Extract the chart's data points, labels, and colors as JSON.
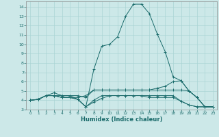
{
  "xlabel": "Humidex (Indice chaleur)",
  "ylabel": "",
  "bg_color": "#cce8e8",
  "grid_color": "#aad4d4",
  "line_color": "#1a6b6b",
  "xlim": [
    -0.5,
    23.5
  ],
  "ylim": [
    3,
    14.6
  ],
  "yticks": [
    3,
    4,
    5,
    6,
    7,
    8,
    9,
    10,
    11,
    12,
    13,
    14
  ],
  "xticks": [
    0,
    1,
    2,
    3,
    4,
    5,
    6,
    7,
    8,
    9,
    10,
    11,
    12,
    13,
    14,
    15,
    16,
    17,
    18,
    19,
    20,
    21,
    22,
    23
  ],
  "series": [
    [
      0,
      4.0,
      1,
      4.1,
      2,
      4.5,
      3,
      4.5,
      4,
      4.5,
      5,
      4.5,
      6,
      4.1,
      7,
      3.3,
      8,
      7.3,
      9,
      9.8,
      10,
      10.0,
      11,
      10.8,
      12,
      13.0,
      13,
      14.3,
      14,
      14.3,
      15,
      13.3,
      16,
      11.1,
      17,
      9.2,
      18,
      6.5,
      19,
      6.1,
      20,
      5.0,
      21,
      4.3,
      22,
      3.3,
      23,
      3.3
    ],
    [
      0,
      4.0,
      1,
      4.1,
      2,
      4.5,
      3,
      4.8,
      4,
      4.5,
      5,
      4.5,
      6,
      4.5,
      7,
      4.3,
      8,
      5.1,
      9,
      5.1,
      10,
      5.1,
      11,
      5.1,
      12,
      5.1,
      13,
      5.1,
      14,
      5.1,
      15,
      5.1,
      16,
      5.3,
      17,
      5.5,
      18,
      6.0,
      19,
      6.1,
      20,
      5.0,
      21,
      4.3,
      22,
      3.3,
      23,
      3.3
    ],
    [
      0,
      4.0,
      1,
      4.1,
      2,
      4.5,
      3,
      4.5,
      4,
      4.3,
      5,
      4.3,
      6,
      4.3,
      7,
      4.5,
      8,
      5.1,
      9,
      5.1,
      10,
      5.1,
      11,
      5.1,
      12,
      5.1,
      13,
      5.1,
      14,
      5.1,
      15,
      5.1,
      16,
      5.1,
      17,
      5.1,
      18,
      5.1,
      19,
      5.1,
      20,
      5.0,
      21,
      4.3,
      22,
      3.3,
      23,
      3.3
    ],
    [
      0,
      4.0,
      1,
      4.1,
      2,
      4.5,
      3,
      4.5,
      4,
      4.3,
      5,
      4.3,
      6,
      4.1,
      7,
      3.3,
      8,
      4.0,
      9,
      4.5,
      10,
      4.5,
      11,
      4.5,
      12,
      4.5,
      13,
      4.5,
      14,
      4.5,
      15,
      4.5,
      16,
      4.5,
      17,
      4.5,
      18,
      4.5,
      19,
      3.9,
      20,
      3.5,
      21,
      3.3,
      22,
      3.3,
      23,
      3.3
    ],
    [
      0,
      4.0,
      1,
      4.1,
      2,
      4.5,
      3,
      4.5,
      4,
      4.3,
      5,
      4.3,
      6,
      4.1,
      7,
      3.3,
      8,
      3.8,
      9,
      4.2,
      10,
      4.5,
      11,
      4.5,
      12,
      4.5,
      13,
      4.5,
      14,
      4.5,
      15,
      4.3,
      16,
      4.3,
      17,
      4.3,
      18,
      4.3,
      19,
      3.9,
      20,
      3.5,
      21,
      3.3,
      22,
      3.3,
      23,
      3.3
    ]
  ]
}
